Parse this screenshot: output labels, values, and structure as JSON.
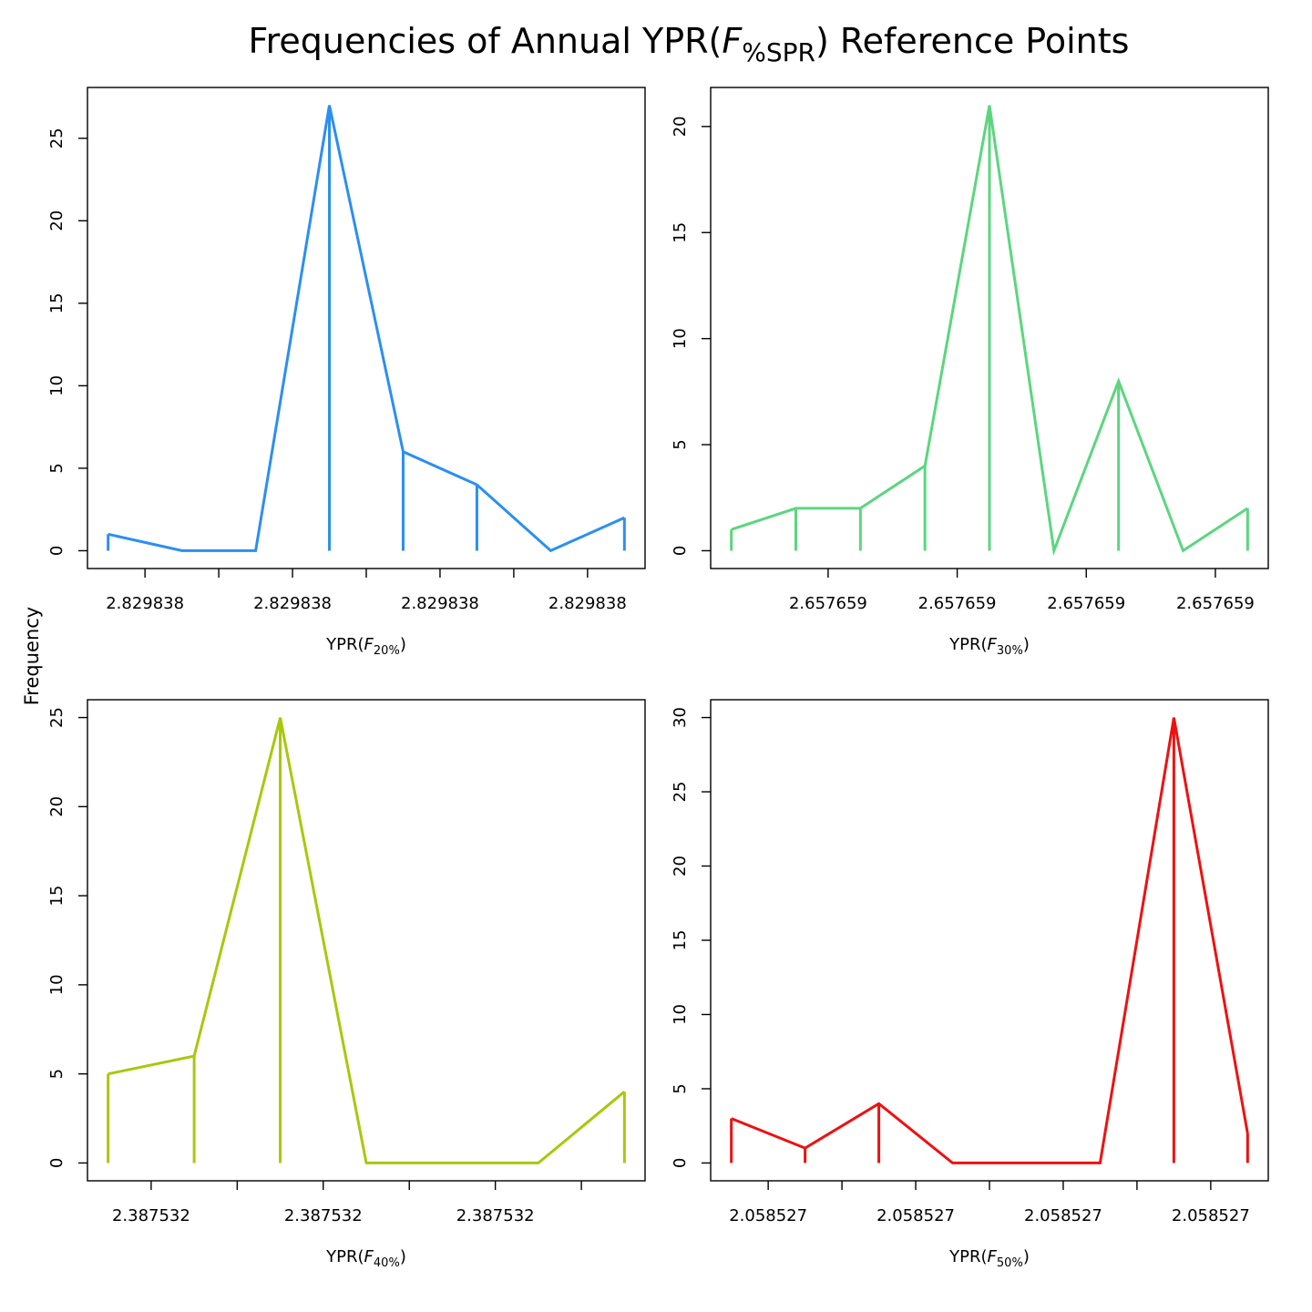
{
  "figure": {
    "title_prefix": "Frequencies of Annual YPR(",
    "title_italic": "F",
    "title_sub": "%SPR",
    "title_suffix": ") Reference Points",
    "ylabel": "Frequency"
  },
  "colors": {
    "panel1": "#2b8ff0",
    "panel2": "#5bd67f",
    "panel3": "#a8c80c",
    "panel4": "#ee1111"
  },
  "chart_data": [
    {
      "type": "line",
      "xlabel_prefix": "YPR(",
      "xlabel_italic": "F",
      "xlabel_sub": "20%",
      "xlabel_suffix": ")",
      "color": "#2b8ff0",
      "xlim": [
        -0.28,
        7.28
      ],
      "ylim": [
        -1.08,
        28.08
      ],
      "x": [
        0,
        1,
        2,
        3,
        4,
        5,
        6,
        7
      ],
      "y": [
        1,
        0,
        0,
        27,
        6,
        4,
        0,
        2
      ],
      "x_ticks": [
        0.5,
        1.5,
        2.5,
        3.5,
        4.5,
        5.5,
        6.5
      ],
      "x_tick_labels": [
        "2.829838",
        "",
        "2.829838",
        "",
        "2.829838",
        "",
        "2.829838"
      ],
      "y_ticks": [
        0,
        5,
        10,
        15,
        20,
        25
      ],
      "y_tick_labels": [
        "0",
        "5",
        "10",
        "15",
        "20",
        "25"
      ]
    },
    {
      "type": "line",
      "xlabel_prefix": "YPR(",
      "xlabel_italic": "F",
      "xlabel_sub": "30%",
      "xlabel_suffix": ")",
      "color": "#5bd67f",
      "xlim": [
        -0.32,
        8.32
      ],
      "ylim": [
        -0.84,
        21.84
      ],
      "x": [
        0,
        1,
        2,
        3,
        4,
        5,
        6,
        7,
        8
      ],
      "y": [
        1,
        2,
        2,
        4,
        21,
        0,
        8,
        0,
        2
      ],
      "x_ticks": [
        1.5,
        3.5,
        5.5,
        7.5
      ],
      "x_tick_labels": [
        "2.657659",
        "2.657659",
        "2.657659",
        "2.657659"
      ],
      "y_ticks": [
        0,
        5,
        10,
        15,
        20
      ],
      "y_tick_labels": [
        "0",
        "5",
        "10",
        "15",
        "20"
      ]
    },
    {
      "type": "line",
      "xlabel_prefix": "YPR(",
      "xlabel_italic": "F",
      "xlabel_sub": "40%",
      "xlabel_suffix": ")",
      "color": "#a8c80c",
      "xlim": [
        -0.24,
        6.24
      ],
      "ylim": [
        -1.0,
        26.0
      ],
      "x": [
        0,
        1,
        2,
        3,
        4,
        5,
        6
      ],
      "y": [
        5,
        6,
        25,
        0,
        0,
        0,
        4
      ],
      "x_ticks": [
        0.5,
        1.5,
        2.5,
        3.5,
        4.5,
        5.5
      ],
      "x_tick_labels": [
        "2.387532",
        "",
        "2.387532",
        "",
        "2.387532",
        ""
      ],
      "y_ticks": [
        0,
        5,
        10,
        15,
        20,
        25
      ],
      "y_tick_labels": [
        "0",
        "5",
        "10",
        "15",
        "20",
        "25"
      ]
    },
    {
      "type": "line",
      "xlabel_prefix": "YPR(",
      "xlabel_italic": "F",
      "xlabel_sub": "50%",
      "xlabel_suffix": ")",
      "color": "#ee1111",
      "xlim": [
        -0.28,
        7.28
      ],
      "ylim": [
        -1.2,
        31.2
      ],
      "x": [
        0,
        1,
        2,
        3,
        4,
        5,
        6,
        7
      ],
      "y": [
        3,
        1,
        4,
        0,
        0,
        0,
        30,
        2
      ],
      "x_ticks": [
        0.5,
        1.5,
        2.5,
        3.5,
        4.5,
        5.5,
        6.5
      ],
      "x_tick_labels": [
        "2.058527",
        "",
        "2.058527",
        "",
        "2.058527",
        "",
        "2.058527"
      ],
      "y_ticks": [
        0,
        5,
        10,
        15,
        20,
        25,
        30
      ],
      "y_tick_labels": [
        "0",
        "5",
        "10",
        "15",
        "20",
        "25",
        "30"
      ]
    }
  ]
}
